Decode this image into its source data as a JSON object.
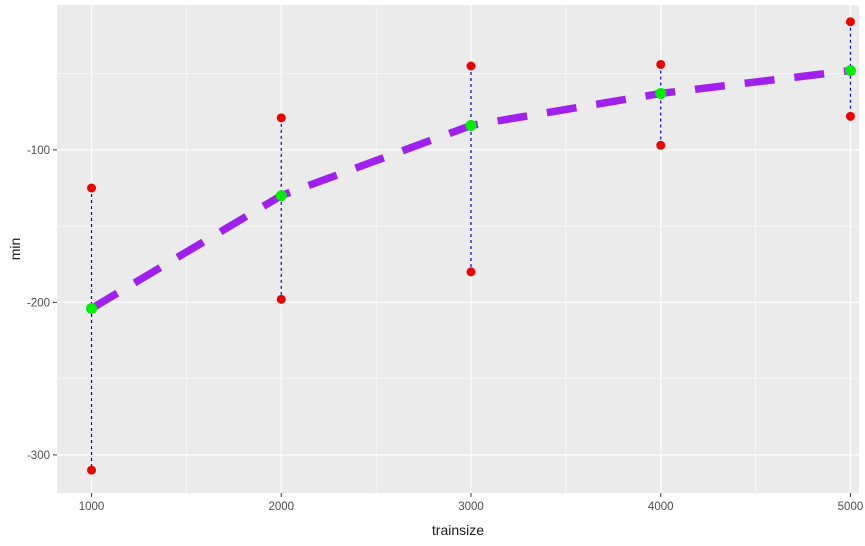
{
  "chart_data": {
    "type": "line",
    "title": "",
    "xlabel": "trainsize",
    "ylabel": "min",
    "xlim": [
      818,
      5045
    ],
    "ylim": [
      -325,
      -5
    ],
    "x_ticks": [
      1000,
      2000,
      3000,
      4000,
      5000
    ],
    "x_tick_labels": [
      "1000",
      "2000",
      "3000",
      "4000",
      "5000"
    ],
    "x_minor_ticks": [
      1500,
      2500,
      3500,
      4500
    ],
    "y_ticks": [
      -100,
      -200,
      -300
    ],
    "y_tick_labels": [
      "-100",
      "-200",
      "-300"
    ],
    "y_minor_ticks": [
      -50,
      -150,
      -250
    ],
    "grid": true,
    "legend": "none",
    "colors": {
      "panel": "#ebebeb",
      "grid": "#ffffff",
      "mean_line": "#a020f0",
      "mean_point": "#00ee00",
      "range_point": "#ee0000",
      "range_line": "#0000cd"
    },
    "series": [
      {
        "x": [
          1000,
          2000,
          3000,
          4000,
          5000
        ],
        "mean": [
          -204,
          -130,
          -84,
          -63,
          -48
        ],
        "upper": [
          -125,
          -79,
          -45,
          -44,
          -16
        ],
        "lower": [
          -310,
          -198,
          -180,
          -97,
          -78
        ]
      }
    ]
  }
}
